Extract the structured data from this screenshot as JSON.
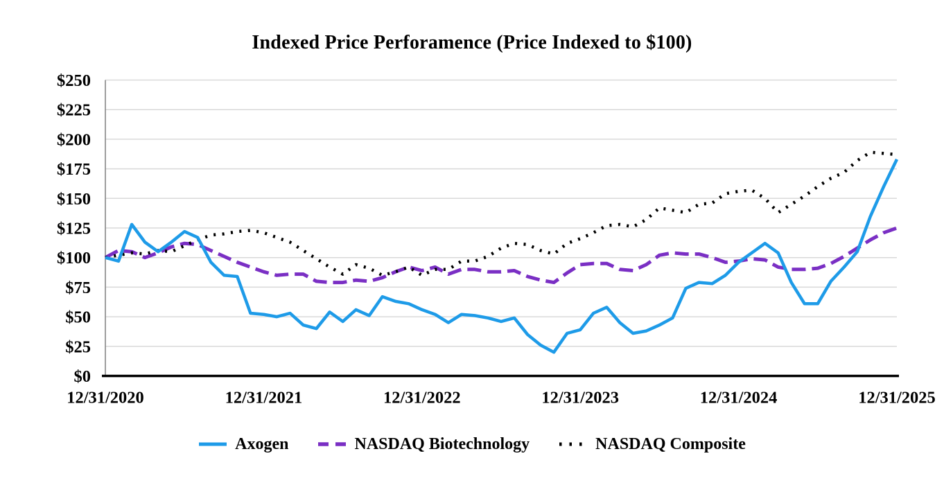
{
  "chart_data": {
    "type": "line",
    "title": "Indexed Price Perforamence (Price Indexed to $100)",
    "x_tick_labels": [
      "12/31/2020",
      "12/31/2021",
      "12/31/2022",
      "12/31/2023",
      "12/31/2024",
      "12/31/2025"
    ],
    "y_tick_labels": [
      "$0",
      "$25",
      "$50",
      "$75",
      "$100",
      "$125",
      "$150",
      "$175",
      "$200",
      "$225",
      "$250"
    ],
    "y_min": 0,
    "y_max": 250,
    "y_step": 25,
    "points_per_series": 61,
    "months_per_tick": 12,
    "grid": true,
    "legend_position": "bottom",
    "series": [
      {
        "name": "Axogen",
        "style": "solid",
        "color": "#1E9BE8",
        "values": [
          100,
          97,
          128,
          113,
          105,
          113,
          122,
          117,
          96,
          85,
          84,
          53,
          52,
          50,
          53,
          43,
          40,
          54,
          46,
          56,
          51,
          67,
          63,
          61,
          56,
          52,
          45,
          52,
          51,
          49,
          46,
          49,
          35,
          26,
          20,
          36,
          39,
          53,
          58,
          45,
          36,
          38,
          43,
          49,
          74,
          79,
          78,
          85,
          96,
          104,
          112,
          104,
          79,
          61,
          61,
          80,
          92,
          105,
          135,
          160,
          183
        ]
      },
      {
        "name": "NASDAQ Biotechnology",
        "style": "dashed",
        "color": "#7A2FC4",
        "values": [
          100,
          106,
          105,
          100,
          104,
          109,
          112,
          111,
          106,
          101,
          96,
          92,
          88,
          85,
          86,
          86,
          80,
          79,
          79,
          81,
          80,
          83,
          88,
          92,
          89,
          92,
          86,
          90,
          90,
          88,
          88,
          89,
          84,
          81,
          79,
          87,
          94,
          95,
          95,
          90,
          89,
          94,
          102,
          104,
          103,
          103,
          100,
          96,
          97,
          99,
          98,
          92,
          90,
          90,
          91,
          95,
          101,
          108,
          115,
          121,
          125
        ]
      },
      {
        "name": "NASDAQ Composite",
        "style": "dotted",
        "color": "#000000",
        "values": [
          100,
          102,
          104,
          103,
          106,
          105,
          110,
          115,
          119,
          120,
          122,
          123,
          121,
          117,
          113,
          106,
          99,
          92,
          86,
          94,
          91,
          85,
          88,
          92,
          85,
          90,
          90,
          97,
          97,
          101,
          108,
          112,
          111,
          106,
          103,
          112,
          116,
          121,
          127,
          128,
          126,
          132,
          142,
          140,
          138,
          145,
          146,
          154,
          156,
          157,
          150,
          138,
          145,
          152,
          160,
          167,
          172,
          182,
          189,
          188,
          187
        ]
      }
    ]
  },
  "colors": {
    "background": "#FFFFFF",
    "gridline": "#D9D9D9",
    "y_axis_line": "#7F7F7F",
    "x_axis_line": "#000000",
    "text": "#000000"
  }
}
